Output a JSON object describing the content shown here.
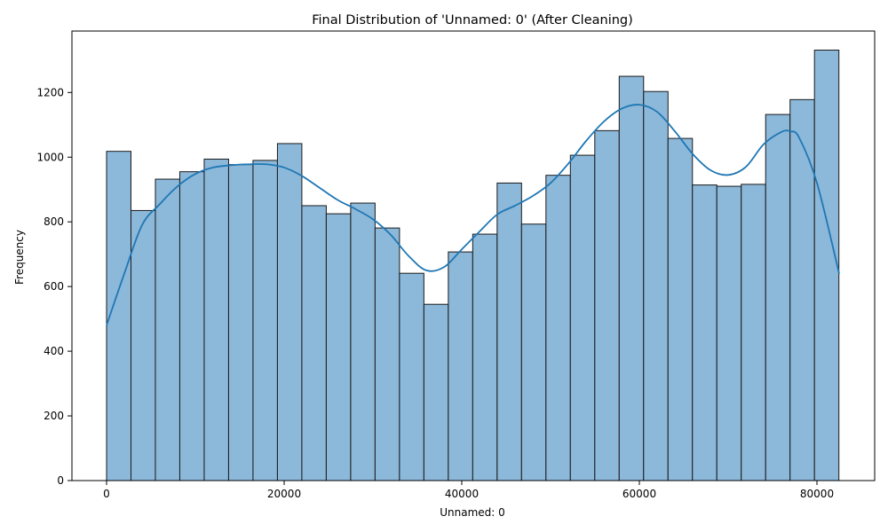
{
  "chart_data": {
    "type": "bar",
    "title": "Final Distribution of 'Unnamed: 0' (After Cleaning)",
    "xlabel": "Unnamed: 0",
    "ylabel": "Frequency",
    "xlim": [
      -3900,
      86500
    ],
    "ylim": [
      0,
      1390
    ],
    "grid": false,
    "x_ticks": [
      0,
      20000,
      40000,
      60000,
      80000
    ],
    "y_ticks": [
      0,
      200,
      400,
      600,
      800,
      1000,
      1200
    ],
    "bin_start": 0,
    "bin_width": 2749,
    "values": [
      1018,
      835,
      932,
      955,
      994,
      977,
      990,
      1042,
      850,
      825,
      858,
      781,
      641,
      545,
      707,
      762,
      920,
      793,
      944,
      1006,
      1082,
      1250,
      1203,
      1058,
      914,
      910,
      916,
      1132,
      1178,
      1331
    ],
    "kde": {
      "x": [
        0,
        2000,
        4000,
        6000,
        8000,
        10000,
        12000,
        14000,
        16000,
        18000,
        20000,
        22000,
        24000,
        26000,
        28000,
        30000,
        32000,
        34000,
        36000,
        38000,
        40000,
        42000,
        44000,
        46000,
        48000,
        50000,
        52000,
        54000,
        56000,
        58000,
        60000,
        62000,
        64000,
        66000,
        68000,
        70000,
        72000,
        74000,
        76000,
        77000,
        78000,
        80000,
        82500
      ],
      "y": [
        480,
        640,
        790,
        855,
        910,
        948,
        968,
        975,
        978,
        978,
        968,
        942,
        905,
        868,
        840,
        808,
        760,
        695,
        650,
        660,
        715,
        770,
        823,
        850,
        880,
        920,
        980,
        1050,
        1110,
        1150,
        1162,
        1140,
        1080,
        1010,
        960,
        945,
        970,
        1040,
        1078,
        1080,
        1060,
        920,
        640
      ]
    },
    "colors": {
      "bar_fill": "#8cb8da",
      "bar_edge": "#1a1a1a",
      "kde_line": "#1f77b4",
      "axis": "#000000"
    }
  }
}
